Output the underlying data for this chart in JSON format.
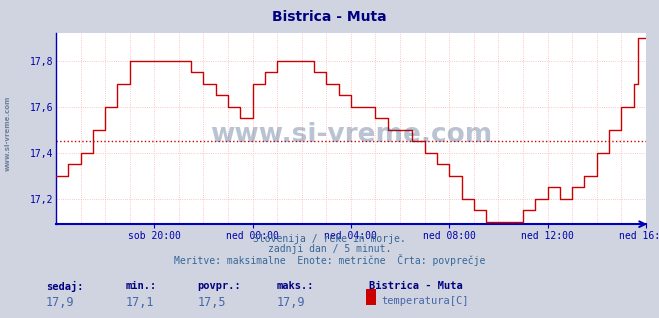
{
  "title": "Bistrica - Muta",
  "title_color": "#000080",
  "bg_color": "#d0d4e0",
  "plot_bg_color": "#ffffff",
  "line_color": "#cc0000",
  "avg_line_color": "#cc0000",
  "avg_line_value": 17.45,
  "grid_color": "#ffb0b0",
  "axis_color": "#0000bb",
  "tick_color": "#0000aa",
  "ylabel_values": [
    17.2,
    17.4,
    17.6,
    17.8
  ],
  "ylim": [
    17.09,
    17.92
  ],
  "xlim": [
    0,
    288
  ],
  "xtick_labels": [
    "sob 20:00",
    "ned 00:00",
    "ned 04:00",
    "ned 08:00",
    "ned 12:00",
    "ned 16:00"
  ],
  "xtick_positions": [
    48,
    96,
    144,
    192,
    240,
    288
  ],
  "subtitle_lines": [
    "Slovenija / reke in morje.",
    "zadnji dan / 5 minut.",
    "Meritve: maksimalne  Enote: metrične  Črta: povprečje"
  ],
  "footer_labels": [
    "sedaj:",
    "min.:",
    "povpr.:",
    "maks.:"
  ],
  "footer_values": [
    "17,9",
    "17,1",
    "17,5",
    "17,9"
  ],
  "footer_series_name": "Bistrica - Muta",
  "footer_measure": "temperatura[C]",
  "watermark_text": "www.si-vreme.com",
  "watermark_color": "#1a3a6a",
  "watermark_alpha": 0.3,
  "legend_box_color": "#cc0000",
  "temp_steps": [
    [
      0,
      17.3
    ],
    [
      6,
      17.3
    ],
    [
      6,
      17.35
    ],
    [
      12,
      17.35
    ],
    [
      12,
      17.4
    ],
    [
      18,
      17.4
    ],
    [
      18,
      17.5
    ],
    [
      24,
      17.5
    ],
    [
      24,
      17.6
    ],
    [
      30,
      17.6
    ],
    [
      30,
      17.7
    ],
    [
      36,
      17.7
    ],
    [
      36,
      17.8
    ],
    [
      66,
      17.8
    ],
    [
      66,
      17.75
    ],
    [
      72,
      17.75
    ],
    [
      72,
      17.7
    ],
    [
      78,
      17.7
    ],
    [
      78,
      17.65
    ],
    [
      84,
      17.65
    ],
    [
      84,
      17.6
    ],
    [
      90,
      17.6
    ],
    [
      90,
      17.55
    ],
    [
      96,
      17.55
    ],
    [
      96,
      17.7
    ],
    [
      102,
      17.7
    ],
    [
      102,
      17.75
    ],
    [
      108,
      17.75
    ],
    [
      108,
      17.8
    ],
    [
      126,
      17.8
    ],
    [
      126,
      17.75
    ],
    [
      132,
      17.75
    ],
    [
      132,
      17.7
    ],
    [
      138,
      17.7
    ],
    [
      138,
      17.65
    ],
    [
      144,
      17.65
    ],
    [
      144,
      17.6
    ],
    [
      156,
      17.6
    ],
    [
      156,
      17.55
    ],
    [
      162,
      17.55
    ],
    [
      162,
      17.5
    ],
    [
      174,
      17.5
    ],
    [
      174,
      17.45
    ],
    [
      180,
      17.45
    ],
    [
      180,
      17.4
    ],
    [
      186,
      17.4
    ],
    [
      186,
      17.35
    ],
    [
      192,
      17.35
    ],
    [
      192,
      17.3
    ],
    [
      198,
      17.3
    ],
    [
      198,
      17.2
    ],
    [
      204,
      17.2
    ],
    [
      204,
      17.15
    ],
    [
      210,
      17.15
    ],
    [
      210,
      17.1
    ],
    [
      228,
      17.1
    ],
    [
      228,
      17.15
    ],
    [
      234,
      17.15
    ],
    [
      234,
      17.2
    ],
    [
      240,
      17.2
    ],
    [
      240,
      17.25
    ],
    [
      246,
      17.25
    ],
    [
      246,
      17.2
    ],
    [
      252,
      17.2
    ],
    [
      252,
      17.25
    ],
    [
      258,
      17.25
    ],
    [
      258,
      17.3
    ],
    [
      264,
      17.3
    ],
    [
      264,
      17.4
    ],
    [
      270,
      17.4
    ],
    [
      270,
      17.5
    ],
    [
      276,
      17.5
    ],
    [
      276,
      17.6
    ],
    [
      282,
      17.6
    ],
    [
      282,
      17.7
    ],
    [
      284,
      17.7
    ],
    [
      284,
      17.9
    ],
    [
      288,
      17.9
    ]
  ]
}
